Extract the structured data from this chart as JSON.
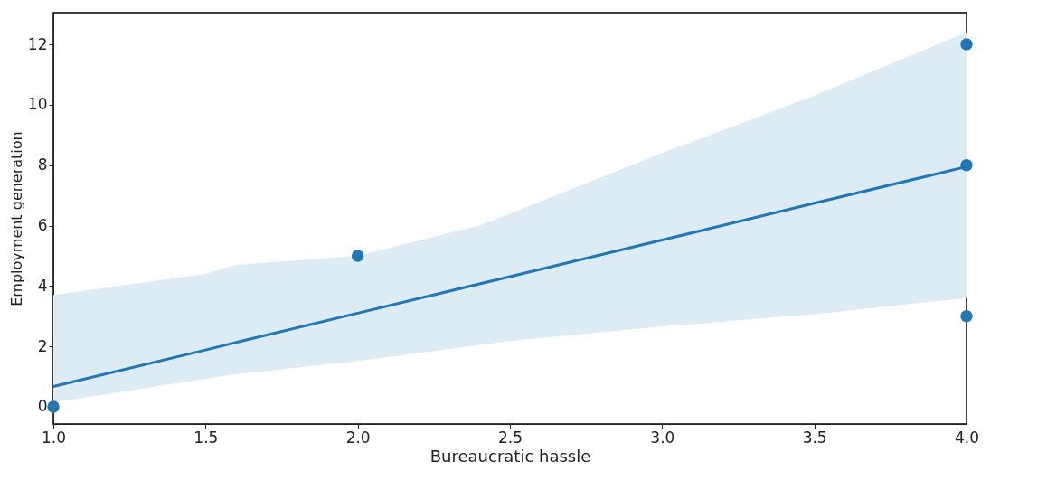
{
  "chart_data": {
    "type": "scatter",
    "xlabel": "Bureaucratic hassle",
    "ylabel": "Employment generation",
    "xlim": [
      1.0,
      4.0
    ],
    "ylim": [
      -0.57,
      13.05
    ],
    "xticks": [
      {
        "value": 1.0,
        "label": "1.0"
      },
      {
        "value": 1.5,
        "label": "1.5"
      },
      {
        "value": 2.0,
        "label": "2.0"
      },
      {
        "value": 2.5,
        "label": "2.5"
      },
      {
        "value": 3.0,
        "label": "3.0"
      },
      {
        "value": 3.5,
        "label": "3.5"
      },
      {
        "value": 4.0,
        "label": "4.0"
      }
    ],
    "yticks": [
      0,
      2,
      4,
      6,
      8,
      10,
      12
    ],
    "line_style": "solid",
    "series": [
      {
        "marker": "circle",
        "color": "#1f77b4",
        "x": [
          1,
          2,
          4,
          4,
          4
        ],
        "values": [
          0,
          5,
          12,
          8,
          3
        ]
      },
      {
        "type": "line",
        "color": "#1f77b4",
        "x": [
          1,
          1.5,
          1.6,
          2,
          2.4,
          2.5,
          3,
          3.5,
          4
        ],
        "values": [
          0.67,
          1.88,
          2.13,
          3.1,
          4.07,
          4.31,
          5.52,
          6.74,
          7.95
        ],
        "lower": [
          0.15,
          0.93,
          1.08,
          1.52,
          2.05,
          2.18,
          2.66,
          3.07,
          3.6
        ],
        "upper": [
          3.7,
          4.4,
          4.7,
          5.0,
          6.0,
          6.4,
          8.4,
          10.3,
          12.4
        ]
      }
    ]
  }
}
